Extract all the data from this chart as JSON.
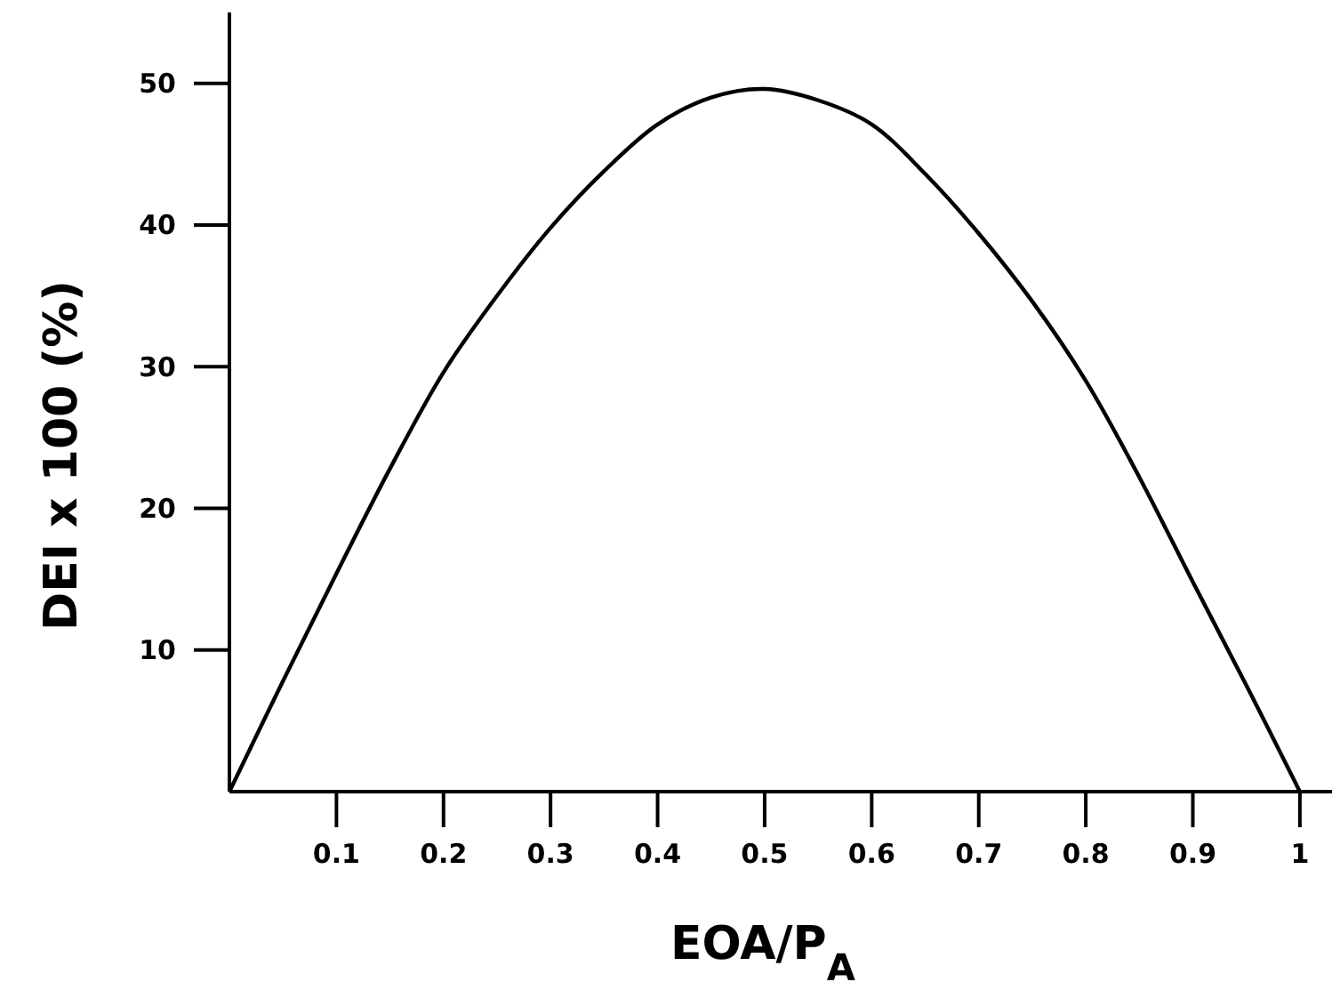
{
  "chart_data": {
    "type": "line",
    "xlabel": "EOA/P$_{A}$",
    "ylabel": "DEI x 100 (%)",
    "x": [
      0,
      0.05,
      0.1,
      0.15,
      0.2,
      0.25,
      0.3,
      0.35,
      0.4,
      0.45,
      0.5,
      0.55,
      0.6,
      0.65,
      0.7,
      0.75,
      0.8,
      0.85,
      0.9,
      0.95,
      1
    ],
    "series": [
      {
        "color": "#000000",
        "values": [
          0,
          7.8,
          15.4,
          22.8,
          29.6,
          35,
          39.8,
          43.8,
          47.1,
          49,
          49.6,
          48.8,
          47.1,
          43.6,
          39.4,
          34.6,
          29,
          22.2,
          14.8,
          7.5,
          0
        ]
      }
    ],
    "xlim": [
      0,
      1.03
    ],
    "ylim": [
      0,
      55
    ],
    "xticks": [
      0.1,
      0.2,
      0.3,
      0.4,
      0.5,
      0.6,
      0.7,
      0.8,
      0.9,
      1
    ],
    "yticks": [
      10,
      20,
      30,
      40,
      50
    ],
    "grid": false,
    "marker": "none",
    "line_style": "solid"
  }
}
